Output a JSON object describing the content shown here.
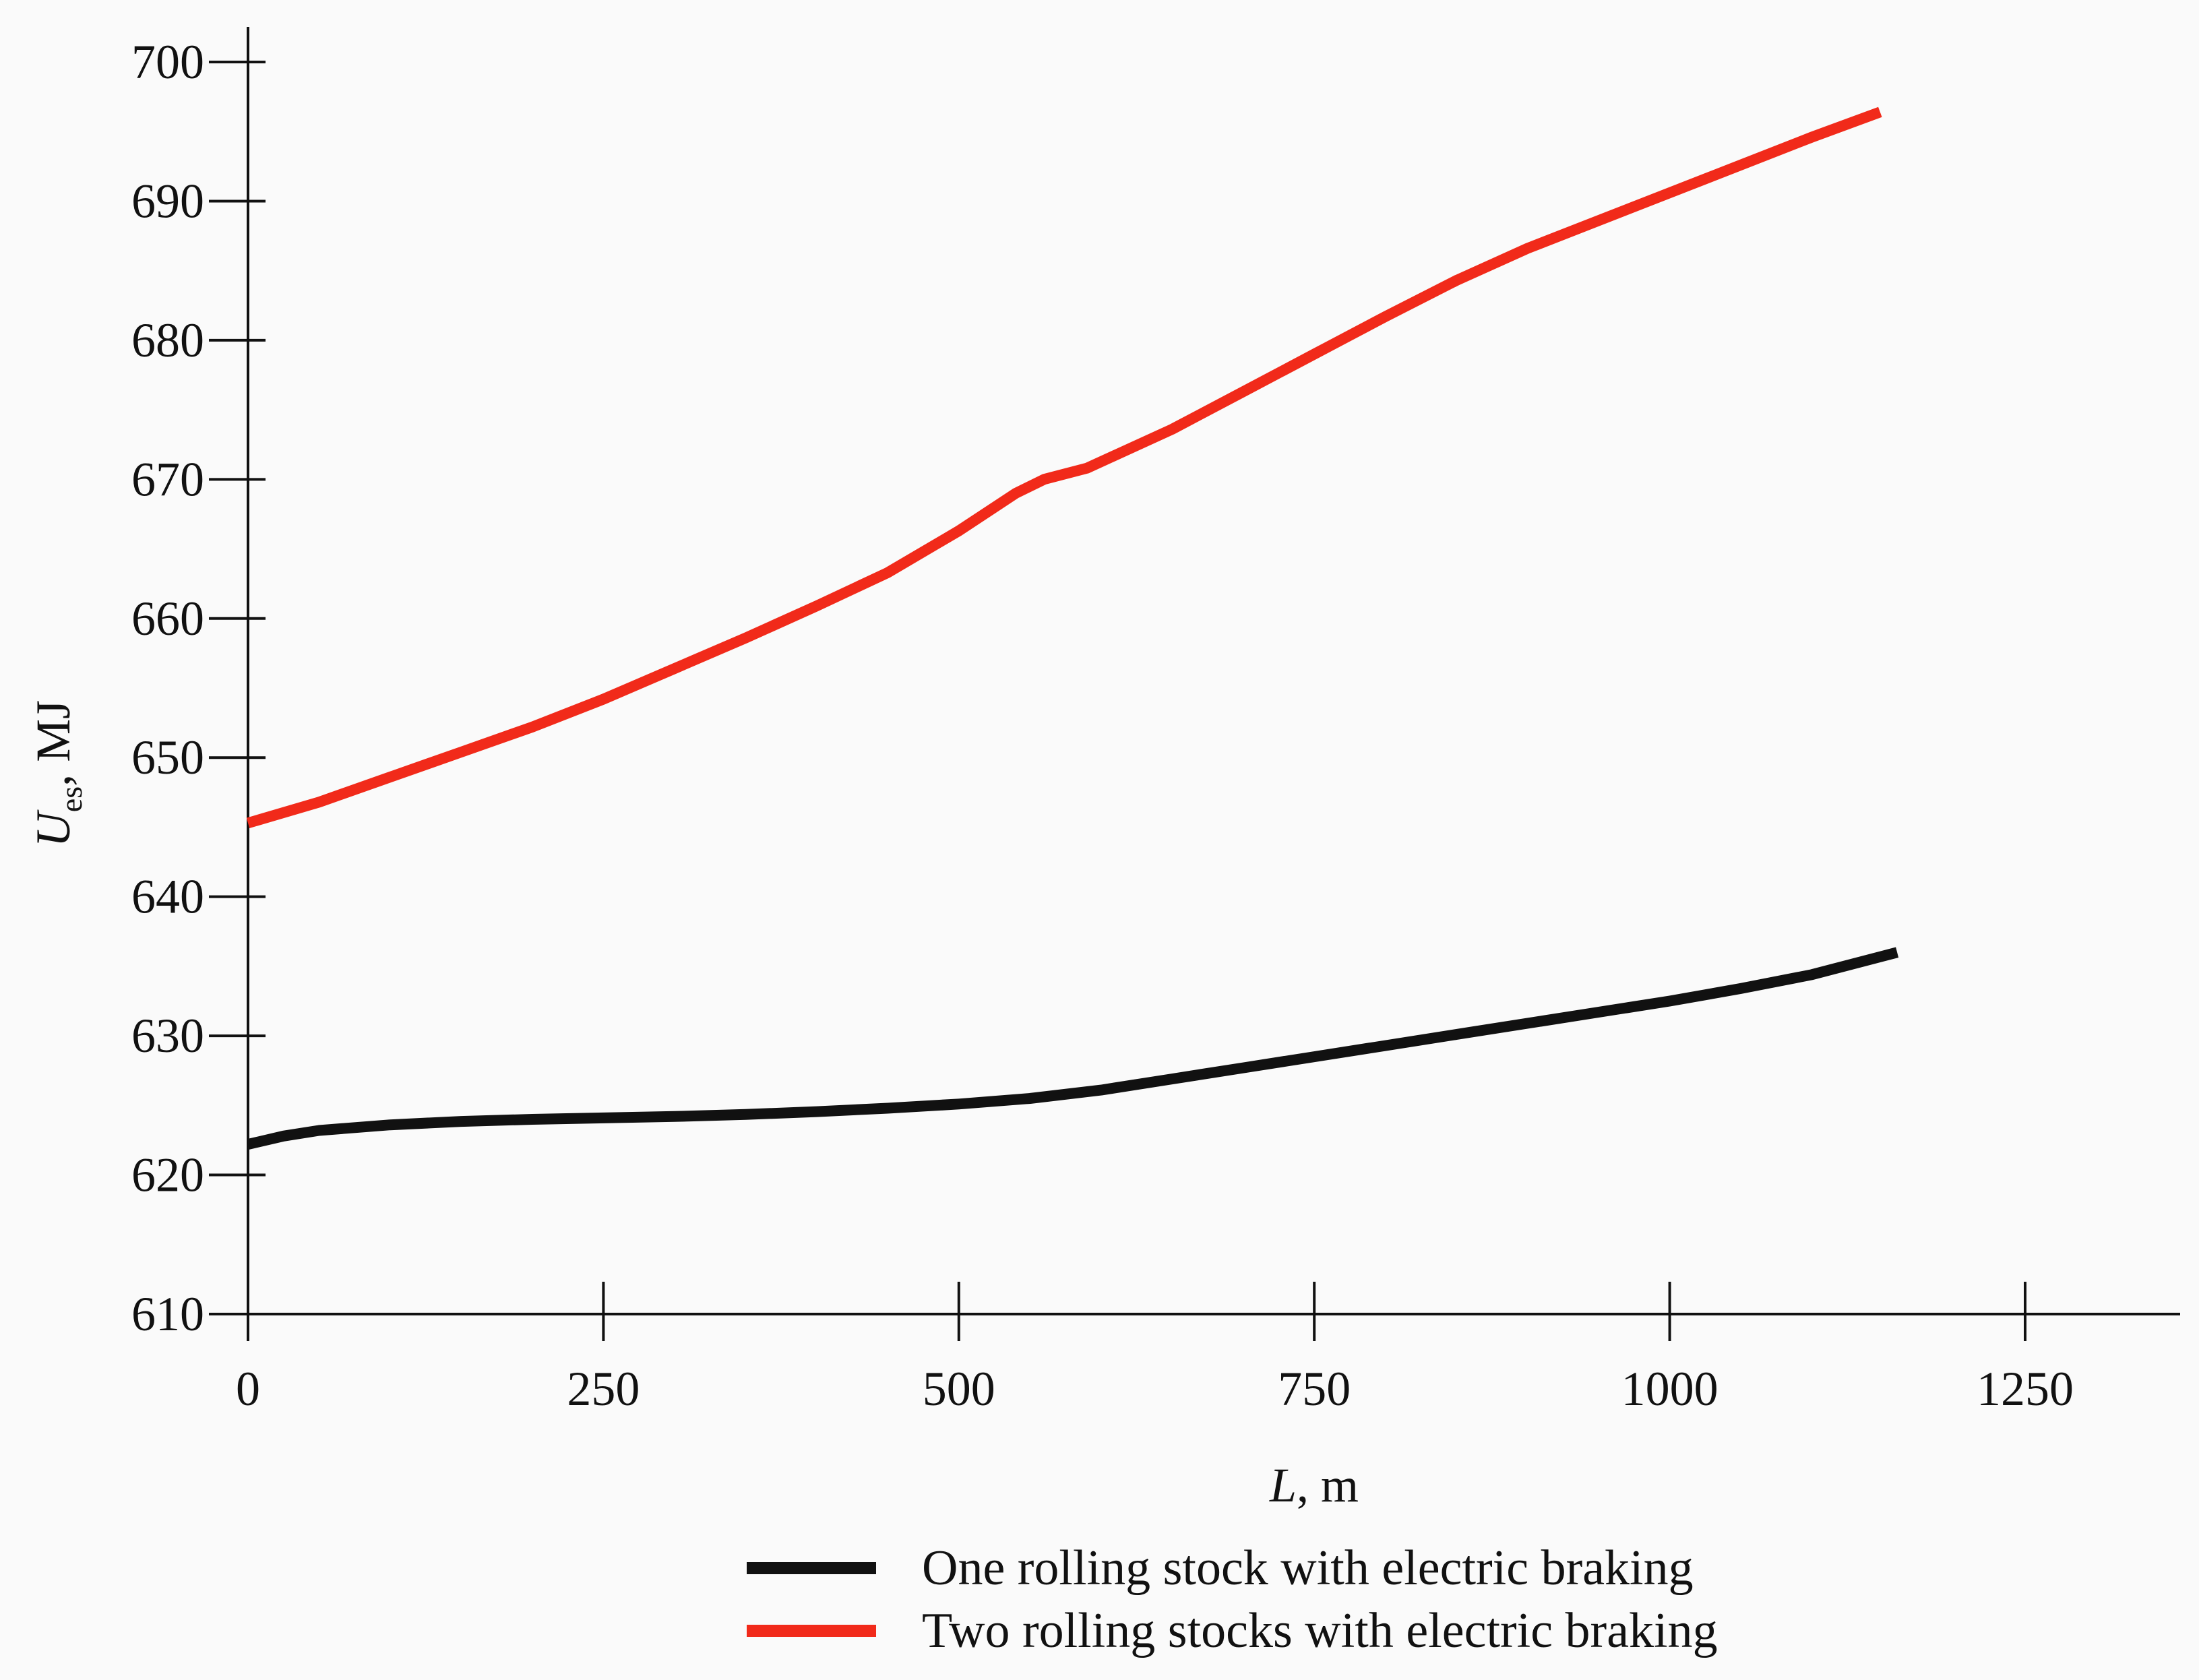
{
  "chart_data": {
    "type": "line",
    "xlabel": {
      "symbol": "L",
      "unit": ", m"
    },
    "ylabel": {
      "symbol": "U",
      "subscript": "es",
      "unit": ", MJ"
    },
    "xlim": [
      0,
      1350
    ],
    "ylim": [
      610,
      700
    ],
    "x_ticks": [
      0,
      250,
      500,
      750,
      1000,
      1250
    ],
    "y_ticks": [
      610,
      620,
      630,
      640,
      650,
      660,
      670,
      680,
      690,
      700
    ],
    "grid": false,
    "legend_position": "bottom-center",
    "series": [
      {
        "name": "One rolling stock with electric braking",
        "color": "#111111",
        "points": [
          [
            0,
            622.2
          ],
          [
            25,
            622.8
          ],
          [
            50,
            623.2
          ],
          [
            100,
            623.6
          ],
          [
            150,
            623.85
          ],
          [
            200,
            624.0
          ],
          [
            250,
            624.1
          ],
          [
            300,
            624.2
          ],
          [
            350,
            624.35
          ],
          [
            400,
            624.55
          ],
          [
            450,
            624.8
          ],
          [
            500,
            625.1
          ],
          [
            550,
            625.5
          ],
          [
            600,
            626.1
          ],
          [
            650,
            626.9
          ],
          [
            700,
            627.7
          ],
          [
            750,
            628.5
          ],
          [
            800,
            629.3
          ],
          [
            850,
            630.1
          ],
          [
            900,
            630.9
          ],
          [
            950,
            631.7
          ],
          [
            1000,
            632.5
          ],
          [
            1050,
            633.4
          ],
          [
            1100,
            634.4
          ],
          [
            1160,
            636.0
          ]
        ]
      },
      {
        "name": "Two rolling stocks with electric braking",
        "color": "#f12a1a",
        "points": [
          [
            0,
            645.3
          ],
          [
            50,
            646.8
          ],
          [
            100,
            648.6
          ],
          [
            150,
            650.4
          ],
          [
            200,
            652.2
          ],
          [
            250,
            654.2
          ],
          [
            300,
            656.4
          ],
          [
            350,
            658.6
          ],
          [
            400,
            660.9
          ],
          [
            450,
            663.3
          ],
          [
            500,
            666.3
          ],
          [
            540,
            669.0
          ],
          [
            560,
            670.0
          ],
          [
            590,
            670.8
          ],
          [
            650,
            673.6
          ],
          [
            700,
            676.3
          ],
          [
            750,
            679.0
          ],
          [
            800,
            681.7
          ],
          [
            850,
            684.3
          ],
          [
            900,
            686.6
          ],
          [
            950,
            688.6
          ],
          [
            1000,
            690.6
          ],
          [
            1050,
            692.6
          ],
          [
            1100,
            694.6
          ],
          [
            1148,
            696.4
          ]
        ]
      }
    ]
  }
}
